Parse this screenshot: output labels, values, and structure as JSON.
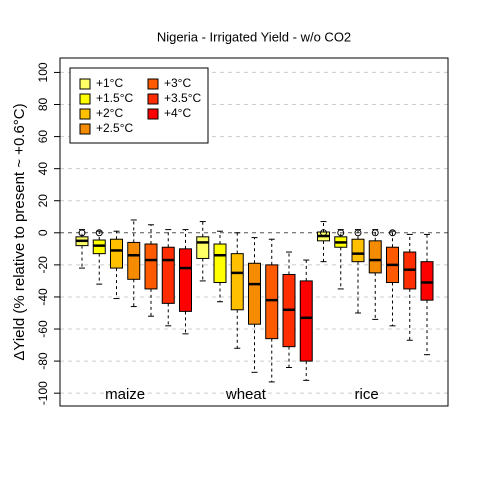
{
  "chart_data": {
    "type": "box",
    "title": "Nigeria - Irrigated Yield - w/o CO2",
    "ylabel": "ΔYield (% relative to present ~ +0.6°C)",
    "groups": [
      "maize",
      "wheat",
      "rice"
    ],
    "ylim": [
      -108,
      109
    ],
    "yticks": [
      -100,
      -80,
      -60,
      -40,
      -20,
      0,
      20,
      40,
      60,
      80,
      100
    ],
    "grid": true,
    "legend": "top-left",
    "series": [
      {
        "name": "+1°C",
        "color": "#FFFF66",
        "boxes": [
          {
            "min": -22,
            "q1": -8,
            "median": -5,
            "q3": -2.5,
            "max": 2,
            "outliers": [
              0
            ]
          },
          {
            "min": -30,
            "q1": -16,
            "median": -6,
            "q3": -2.5,
            "max": 7
          },
          {
            "min": -18,
            "q1": -5,
            "median": -2,
            "q3": 0.5,
            "max": 7,
            "outliers": [
              0
            ]
          }
        ]
      },
      {
        "name": "+1.5°C",
        "color": "#FFFF00",
        "boxes": [
          {
            "min": -32,
            "q1": -13,
            "median": -8,
            "q3": -4.5,
            "max": 1,
            "outliers": [
              0
            ]
          },
          {
            "min": -43,
            "q1": -31,
            "median": -14,
            "q3": -7,
            "max": 1
          },
          {
            "min": -35,
            "q1": -9,
            "median": -6,
            "q3": -2.5,
            "max": 2,
            "outliers": [
              0
            ]
          }
        ]
      },
      {
        "name": "+2°C",
        "color": "#FFC000",
        "boxes": [
          {
            "min": -41,
            "q1": -22,
            "median": -11,
            "q3": -4,
            "max": 1
          },
          {
            "min": -72,
            "q1": -48,
            "median": -25,
            "q3": -13,
            "max": 0
          },
          {
            "min": -50,
            "q1": -18,
            "median": -13,
            "q3": -4,
            "max": 2,
            "outliers": [
              0
            ]
          }
        ]
      },
      {
        "name": "+2.5°C",
        "color": "#F58B00",
        "boxes": [
          {
            "min": -46,
            "q1": -29,
            "median": -14,
            "q3": -6,
            "max": 8
          },
          {
            "min": -87,
            "q1": -57,
            "median": -32,
            "q3": -19,
            "max": -3
          },
          {
            "min": -54,
            "q1": -25,
            "median": -17,
            "q3": -5,
            "max": 2,
            "outliers": [
              0
            ]
          }
        ]
      },
      {
        "name": "+3°C",
        "color": "#FF5A00",
        "boxes": [
          {
            "min": -52,
            "q1": -35,
            "median": -17,
            "q3": -7,
            "max": 5
          },
          {
            "min": -93,
            "q1": -66,
            "median": -42,
            "q3": -20,
            "max": -4
          },
          {
            "min": -58,
            "q1": -31,
            "median": -20,
            "q3": -9,
            "max": 1,
            "outliers": [
              0
            ]
          }
        ]
      },
      {
        "name": "+3.5°C",
        "color": "#FF2D00",
        "boxes": [
          {
            "min": -58,
            "q1": -44,
            "median": -17,
            "q3": -9,
            "max": 2
          },
          {
            "min": -84,
            "q1": -71,
            "median": -48,
            "q3": -26,
            "max": -12
          },
          {
            "min": -67,
            "q1": -35,
            "median": -23,
            "q3": -12,
            "max": -1
          }
        ]
      },
      {
        "name": "+4°C",
        "color": "#FF0000",
        "boxes": [
          {
            "min": -63,
            "q1": -49,
            "median": -22,
            "q3": -10,
            "max": 2
          },
          {
            "min": -92,
            "q1": -80,
            "median": -53,
            "q3": -30,
            "max": -17
          },
          {
            "min": -76,
            "q1": -42,
            "median": -31,
            "q3": -18,
            "max": -1
          }
        ]
      }
    ]
  }
}
